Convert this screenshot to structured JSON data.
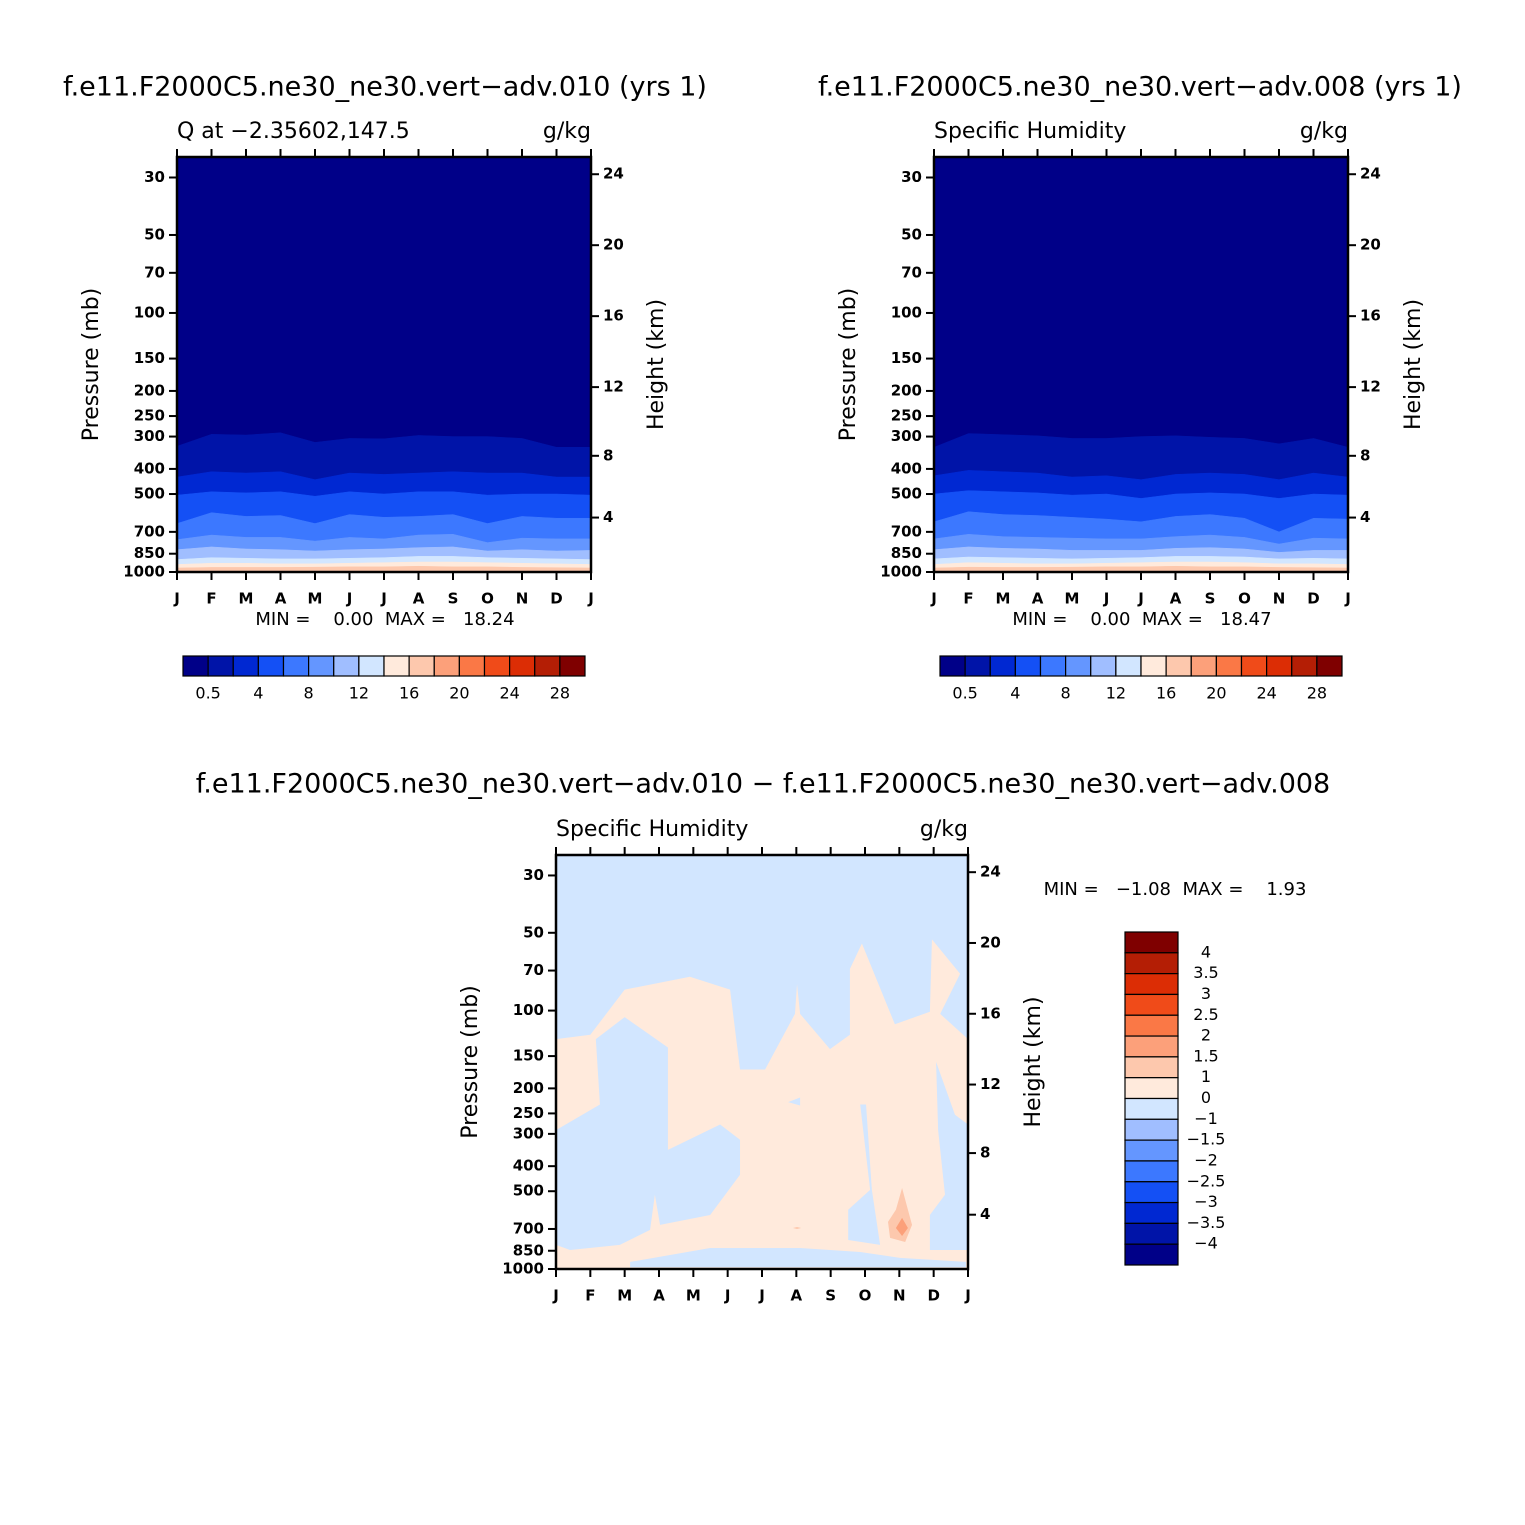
{
  "chart_data": [
    {
      "type": "contour",
      "title": "f.e11.F2000C5.ne30_ne30.vert−adv.010 (yrs 1)",
      "subtitle_left": "Q at −2.35602,147.5",
      "subtitle_right": "g/kg",
      "ylabel": "Pressure (mb)",
      "y2label": "Height (km)",
      "categories": [
        "J",
        "F",
        "M",
        "A",
        "M",
        "J",
        "J",
        "A",
        "S",
        "O",
        "N",
        "D",
        "J"
      ],
      "ylim": [
        1000,
        25
      ],
      "yscale": "log",
      "yticks": [
        30,
        50,
        70,
        100,
        150,
        200,
        250,
        300,
        400,
        500,
        700,
        850,
        1000
      ],
      "y2ticks": [
        4,
        8,
        12,
        16,
        20,
        24
      ],
      "stats": "MIN =    0.00  MAX =   18.24",
      "colorbar": {
        "orientation": "horizontal",
        "colors": [
          "#000088",
          "#0014a8",
          "#0028d2",
          "#1450f5",
          "#3c78ff",
          "#6496ff",
          "#a0beff",
          "#d2e6ff",
          "#ffeadc",
          "#fdc8ad",
          "#fca07a",
          "#fa7846",
          "#f04b19",
          "#dc2d05",
          "#b41e05",
          "#7f0000"
        ],
        "labels": [
          0.5,
          4,
          8,
          12,
          16,
          20,
          24,
          28
        ]
      },
      "background": "#000088",
      "bands": [
        {
          "color": "#0014a8",
          "top": [
            327,
            294,
            296,
            290,
            316,
            305,
            306,
            297,
            300,
            300,
            305,
            330,
            330
          ]
        },
        {
          "color": "#0028d2",
          "top": [
            430,
            410,
            415,
            410,
            440,
            415,
            420,
            415,
            410,
            415,
            415,
            430,
            430
          ]
        },
        {
          "color": "#1450f5",
          "top": [
            505,
            490,
            495,
            490,
            510,
            490,
            500,
            490,
            490,
            505,
            500,
            500,
            505
          ]
        },
        {
          "color": "#3c78ff",
          "top": [
            650,
            590,
            610,
            605,
            650,
            600,
            615,
            610,
            600,
            650,
            610,
            620,
            620
          ]
        },
        {
          "color": "#6496ff",
          "top": [
            750,
            720,
            735,
            735,
            760,
            735,
            745,
            720,
            715,
            770,
            740,
            745,
            745
          ]
        },
        {
          "color": "#a0beff",
          "top": [
            820,
            800,
            815,
            820,
            830,
            820,
            815,
            805,
            800,
            830,
            820,
            830,
            825
          ]
        },
        {
          "color": "#d2e6ff",
          "top": [
            895,
            880,
            885,
            890,
            890,
            885,
            880,
            870,
            870,
            880,
            885,
            890,
            895
          ]
        },
        {
          "color": "#ffeadc",
          "top": [
            935,
            925,
            925,
            930,
            930,
            925,
            920,
            915,
            915,
            920,
            925,
            930,
            935
          ]
        },
        {
          "color": "#fdc8ad",
          "top": [
            965,
            960,
            960,
            960,
            958,
            955,
            955,
            950,
            955,
            955,
            960,
            962,
            965
          ]
        }
      ]
    },
    {
      "type": "contour",
      "title": "f.e11.F2000C5.ne30_ne30.vert−adv.008 (yrs 1)",
      "subtitle_left": "Specific Humidity",
      "subtitle_right": "g/kg",
      "ylabel": "Pressure (mb)",
      "y2label": "Height (km)",
      "categories": [
        "J",
        "F",
        "M",
        "A",
        "M",
        "J",
        "J",
        "A",
        "S",
        "O",
        "N",
        "D",
        "J"
      ],
      "ylim": [
        1000,
        25
      ],
      "yscale": "log",
      "yticks": [
        30,
        50,
        70,
        100,
        150,
        200,
        250,
        300,
        400,
        500,
        700,
        850,
        1000
      ],
      "y2ticks": [
        4,
        8,
        12,
        16,
        20,
        24
      ],
      "stats": "MIN =    0.00  MAX =   18.47",
      "colorbar": {
        "orientation": "horizontal",
        "colors": [
          "#000088",
          "#0014a8",
          "#0028d2",
          "#1450f5",
          "#3c78ff",
          "#6496ff",
          "#a0beff",
          "#d2e6ff",
          "#ffeadc",
          "#fdc8ad",
          "#fca07a",
          "#fa7846",
          "#f04b19",
          "#dc2d05",
          "#b41e05",
          "#7f0000"
        ],
        "labels": [
          0.5,
          4,
          8,
          12,
          16,
          20,
          24,
          28
        ]
      },
      "background": "#000088",
      "bands": [
        {
          "color": "#0014a8",
          "top": [
            330,
            292,
            295,
            298,
            305,
            305,
            300,
            298,
            302,
            305,
            320,
            305,
            330
          ]
        },
        {
          "color": "#0028d2",
          "top": [
            425,
            405,
            410,
            415,
            430,
            425,
            440,
            420,
            415,
            420,
            440,
            415,
            430
          ]
        },
        {
          "color": "#1450f5",
          "top": [
            500,
            485,
            490,
            495,
            505,
            500,
            520,
            500,
            495,
            500,
            520,
            500,
            505
          ]
        },
        {
          "color": "#3c78ff",
          "top": [
            640,
            585,
            600,
            605,
            615,
            625,
            640,
            610,
            600,
            620,
            700,
            620,
            625
          ]
        },
        {
          "color": "#6496ff",
          "top": [
            745,
            715,
            730,
            735,
            740,
            745,
            745,
            730,
            720,
            735,
            780,
            740,
            745
          ]
        },
        {
          "color": "#a0beff",
          "top": [
            820,
            800,
            810,
            815,
            825,
            825,
            825,
            810,
            805,
            815,
            840,
            825,
            825
          ]
        },
        {
          "color": "#d2e6ff",
          "top": [
            890,
            875,
            880,
            885,
            890,
            885,
            880,
            870,
            870,
            875,
            890,
            885,
            890
          ]
        },
        {
          "color": "#ffeadc",
          "top": [
            935,
            920,
            925,
            930,
            930,
            925,
            920,
            915,
            915,
            920,
            930,
            930,
            935
          ]
        },
        {
          "color": "#fdc8ad",
          "top": [
            965,
            958,
            960,
            960,
            958,
            955,
            955,
            950,
            955,
            955,
            960,
            962,
            965
          ]
        }
      ]
    },
    {
      "type": "contour",
      "title": "f.e11.F2000C5.ne30_ne30.vert−adv.010 − f.e11.F2000C5.ne30_ne30.vert−adv.008",
      "subtitle_left": "Specific Humidity",
      "subtitle_right": "g/kg",
      "ylabel": "Pressure (mb)",
      "y2label": "Height (km)",
      "categories": [
        "J",
        "F",
        "M",
        "A",
        "M",
        "J",
        "J",
        "A",
        "S",
        "O",
        "N",
        "D",
        "J"
      ],
      "ylim": [
        1000,
        25
      ],
      "yscale": "log",
      "yticks": [
        30,
        50,
        70,
        100,
        150,
        200,
        250,
        300,
        400,
        500,
        700,
        850,
        1000
      ],
      "y2ticks": [
        4,
        8,
        12,
        16,
        20,
        24
      ],
      "stats": "MIN =   −1.08  MAX =    1.93",
      "colorbar": {
        "orientation": "vertical",
        "colors": [
          "#7f0000",
          "#b41e05",
          "#dc2d05",
          "#f04b19",
          "#fa7846",
          "#fca07a",
          "#fdc8ad",
          "#ffeadc",
          "#d2e6ff",
          "#a0beff",
          "#6496ff",
          "#3c78ff",
          "#1450f5",
          "#0028d2",
          "#0014a8",
          "#000088"
        ],
        "labels": [
          4,
          3.5,
          3,
          2.5,
          2,
          1.5,
          1,
          0,
          {
            "value": -1,
            "label": "−1"
          },
          {
            "value": -1.5,
            "label": "−1.5"
          },
          {
            "value": -2,
            "label": "−2"
          },
          {
            "value": -2.5,
            "label": "−2.5"
          },
          {
            "value": -3,
            "label": "−3"
          },
          {
            "value": -3.5,
            "label": "−3.5"
          },
          {
            "value": -4,
            "label": "−4"
          }
        ]
      },
      "background": "#d2e6ff",
      "regions": [
        {
          "color": "#ffeadc",
          "points": [
            [
              0,
              129
            ],
            [
              1,
              124
            ],
            [
              2,
              83
            ],
            [
              3.9,
              74
            ],
            [
              5.07,
              83
            ],
            [
              5.36,
              169
            ],
            [
              6.09,
              169
            ],
            [
              6.96,
              103
            ],
            [
              7.02,
              79
            ],
            [
              7.11,
              103
            ],
            [
              7.98,
              141
            ],
            [
              8.56,
              124
            ],
            [
              8.56,
              69
            ],
            [
              8.91,
              55
            ],
            [
              9.87,
              113
            ],
            [
              10.89,
              101
            ],
            [
              10.95,
              53
            ],
            [
              11.77,
              72
            ],
            [
              11.19,
              103
            ],
            [
              12,
              129
            ],
            [
              12,
              1000
            ],
            [
              0,
              1000
            ]
          ]
        },
        {
          "color": "#d2e6ff",
          "points": [
            [
              0,
              290
            ],
            [
              1.28,
              231
            ],
            [
              1.16,
              129
            ],
            [
              2,
              106
            ],
            [
              3.26,
              139
            ],
            [
              3.26,
              346
            ],
            [
              4.78,
              276
            ],
            [
              5.36,
              316
            ],
            [
              5.36,
              432
            ],
            [
              4.49,
              618
            ],
            [
              3.03,
              675
            ],
            [
              2.88,
              516
            ],
            [
              2.74,
              706
            ],
            [
              1.86,
              807
            ],
            [
              0.41,
              844
            ],
            [
              0,
              807
            ]
          ]
        },
        {
          "color": "#d2e6ff",
          "points": [
            [
              2.16,
              939
            ],
            [
              4.49,
              829
            ],
            [
              7.11,
              829
            ],
            [
              8.86,
              859
            ],
            [
              10.02,
              906
            ],
            [
              11.94,
              939
            ],
            [
              11.94,
              985
            ],
            [
              2.16,
              985
            ]
          ]
        },
        {
          "color": "#d2e6ff",
          "points": [
            [
              8.86,
              231
            ],
            [
              9.15,
              494
            ],
            [
              8.51,
              590
            ],
            [
              8.51,
              772
            ],
            [
              9.44,
              807
            ],
            [
              9.2,
              494
            ],
            [
              9.03,
              231
            ]
          ]
        },
        {
          "color": "#d2e6ff",
          "points": [
            [
              11.07,
              158
            ],
            [
              11.62,
              253
            ],
            [
              12,
              276
            ],
            [
              12,
              844
            ],
            [
              10.89,
              844
            ],
            [
              10.89,
              618
            ],
            [
              11.33,
              516
            ],
            [
              11.13,
              290
            ]
          ]
        },
        {
          "color": "#d2e6ff",
          "points": [
            [
              6.76,
              226
            ],
            [
              7.11,
              217
            ],
            [
              7.11,
              233
            ]
          ]
        },
        {
          "color": "#fdc8ad",
          "points": [
            [
              10.08,
              486
            ],
            [
              10.25,
              590
            ],
            [
              10.37,
              675
            ],
            [
              10.17,
              786
            ],
            [
              9.73,
              758
            ],
            [
              9.67,
              657
            ],
            [
              9.9,
              590
            ]
          ]
        },
        {
          "color": "#fca07a",
          "points": [
            [
              10.08,
              634
            ],
            [
              10.25,
              694
            ],
            [
              10.08,
              745
            ],
            [
              9.9,
              694
            ]
          ]
        },
        {
          "color": "#fdc8ad",
          "points": [
            [
              6.9,
              694
            ],
            [
              7.02,
              688
            ],
            [
              7.14,
              694
            ],
            [
              7.02,
              700
            ]
          ]
        }
      ]
    }
  ]
}
